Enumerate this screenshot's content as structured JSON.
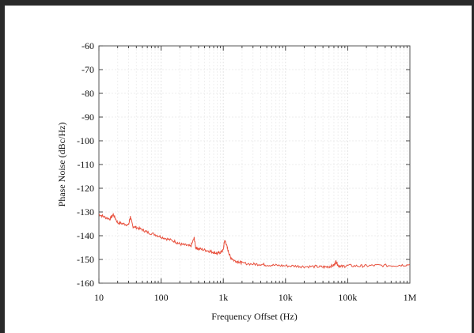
{
  "chart_data": {
    "type": "line",
    "xlabel": "Frequency Offset (Hz)",
    "ylabel": "Phase Noise (dBc/Hz)",
    "x_scale": "log",
    "xlim": [
      10,
      1000000
    ],
    "ylim": [
      -160,
      -60
    ],
    "x_ticks": [
      {
        "value": 10,
        "label": "10"
      },
      {
        "value": 100,
        "label": "100"
      },
      {
        "value": 1000,
        "label": "1k"
      },
      {
        "value": 10000,
        "label": "10k"
      },
      {
        "value": 100000,
        "label": "100k"
      },
      {
        "value": 1000000,
        "label": "1M"
      }
    ],
    "y_ticks": [
      {
        "value": -60,
        "label": "-60"
      },
      {
        "value": -70,
        "label": "-70"
      },
      {
        "value": -80,
        "label": "-80"
      },
      {
        "value": -90,
        "label": "-90"
      },
      {
        "value": -100,
        "label": "-100"
      },
      {
        "value": -110,
        "label": "-110"
      },
      {
        "value": -120,
        "label": "-120"
      },
      {
        "value": -130,
        "label": "-130"
      },
      {
        "value": -140,
        "label": "-140"
      },
      {
        "value": -150,
        "label": "-150"
      },
      {
        "value": -160,
        "label": "-160"
      }
    ],
    "grid": true,
    "line_color": "#e8523f",
    "series": [
      {
        "x": [
          10,
          12,
          15,
          17,
          20,
          25,
          30,
          32,
          35,
          40,
          50,
          60,
          80,
          100,
          130,
          170,
          200,
          250,
          300,
          340,
          360,
          400,
          500,
          600,
          700,
          800,
          900,
          1000,
          1050,
          1100,
          1200,
          1300,
          1500,
          1800,
          2000,
          3000,
          4000,
          5000,
          7000,
          10000,
          15000,
          20000,
          30000,
          40000,
          50000,
          60000,
          65000,
          70000,
          80000,
          100000,
          150000,
          200000,
          300000,
          500000,
          700000,
          1000000
        ],
        "y": [
          -131,
          -132,
          -133,
          -131,
          -134.5,
          -135,
          -135.5,
          -132,
          -136,
          -136.5,
          -137.5,
          -138.5,
          -139.5,
          -140.5,
          -141.5,
          -142.5,
          -143.5,
          -144,
          -144.5,
          -141,
          -145,
          -145.5,
          -146,
          -146.5,
          -147,
          -147.5,
          -147,
          -146,
          -142,
          -143,
          -146.5,
          -149,
          -150.5,
          -151,
          -151.5,
          -152,
          -152,
          -152.3,
          -152.5,
          -152.7,
          -152.8,
          -153,
          -153,
          -153.2,
          -153,
          -152.5,
          -150.8,
          -152.5,
          -153,
          -152.6,
          -152.8,
          -152.7,
          -152.5,
          -152.6,
          -152.4,
          -152.2
        ]
      }
    ]
  }
}
